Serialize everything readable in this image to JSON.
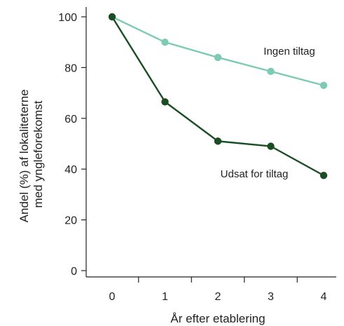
{
  "chart_data": {
    "type": "line",
    "title": "",
    "xlabel": "År efter etablering",
    "ylabel_lines": [
      "Andel (%) af lokaliteterne",
      "med yngleforekomst"
    ],
    "x": [
      0,
      1,
      2,
      3,
      4
    ],
    "xlim": [
      -0.5,
      4.3
    ],
    "ylim": [
      0,
      100
    ],
    "x_ticks": [
      "0",
      "1",
      "2",
      "3",
      "4"
    ],
    "y_ticks": [
      "0",
      "20",
      "40",
      "60",
      "80",
      "100"
    ],
    "grid": false,
    "series": [
      {
        "name": "Ingen tiltag",
        "values": [
          100,
          90,
          84,
          78.5,
          73
        ],
        "color": "#7dcbb4"
      },
      {
        "name": "Udsat for tiltag",
        "values": [
          100,
          66.5,
          51,
          49,
          37.5
        ],
        "color": "#1b4d24"
      }
    ]
  }
}
